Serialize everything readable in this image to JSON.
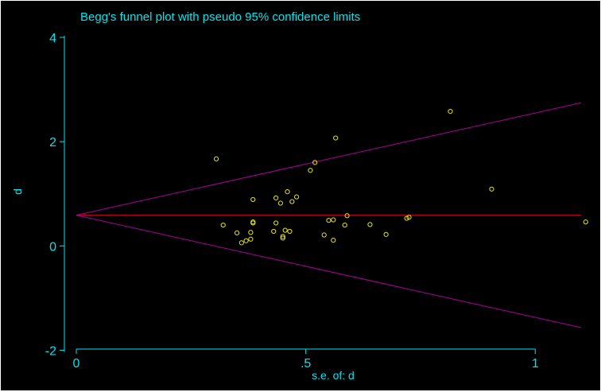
{
  "chart_data": {
    "type": "scatter",
    "title": "Begg's funnel plot with pseudo 95% confidence limits",
    "xlabel": "s.e. of: d",
    "ylabel": "d",
    "xlim": [
      0,
      1.1
    ],
    "ylim": [
      -2.1,
      4
    ],
    "x_ticks": [
      0,
      0.5,
      1
    ],
    "x_tick_labels": [
      "0",
      ".5",
      "1"
    ],
    "y_ticks": [
      -2,
      0,
      2,
      4
    ],
    "y_tick_labels": [
      "-2",
      "0",
      "2",
      "4"
    ],
    "grid": false,
    "pooled_estimate": 0.59,
    "confidence_z": 1.96,
    "points": [
      {
        "x": 0.305,
        "y": 1.67
      },
      {
        "x": 0.32,
        "y": 0.4
      },
      {
        "x": 0.35,
        "y": 0.25
      },
      {
        "x": 0.36,
        "y": 0.06
      },
      {
        "x": 0.37,
        "y": 0.1
      },
      {
        "x": 0.38,
        "y": 0.13
      },
      {
        "x": 0.38,
        "y": 0.26
      },
      {
        "x": 0.385,
        "y": 0.44
      },
      {
        "x": 0.385,
        "y": 0.46
      },
      {
        "x": 0.385,
        "y": 0.89
      },
      {
        "x": 0.43,
        "y": 0.28
      },
      {
        "x": 0.435,
        "y": 0.44
      },
      {
        "x": 0.435,
        "y": 0.92
      },
      {
        "x": 0.445,
        "y": 0.82
      },
      {
        "x": 0.45,
        "y": 0.15
      },
      {
        "x": 0.45,
        "y": 0.18
      },
      {
        "x": 0.455,
        "y": 0.3
      },
      {
        "x": 0.46,
        "y": 1.04
      },
      {
        "x": 0.465,
        "y": 0.28
      },
      {
        "x": 0.47,
        "y": 0.85
      },
      {
        "x": 0.48,
        "y": 0.94
      },
      {
        "x": 0.51,
        "y": 1.45
      },
      {
        "x": 0.52,
        "y": 1.6
      },
      {
        "x": 0.54,
        "y": 0.21
      },
      {
        "x": 0.55,
        "y": 0.49
      },
      {
        "x": 0.56,
        "y": 0.5
      },
      {
        "x": 0.56,
        "y": 0.11
      },
      {
        "x": 0.565,
        "y": 2.07
      },
      {
        "x": 0.585,
        "y": 0.4
      },
      {
        "x": 0.59,
        "y": 0.58
      },
      {
        "x": 0.64,
        "y": 0.41
      },
      {
        "x": 0.675,
        "y": 0.22
      },
      {
        "x": 0.72,
        "y": 0.53
      },
      {
        "x": 0.725,
        "y": 0.55
      },
      {
        "x": 0.815,
        "y": 2.58
      },
      {
        "x": 0.905,
        "y": 1.09
      },
      {
        "x": 1.11,
        "y": 0.46
      }
    ]
  },
  "colors": {
    "background": "#000000",
    "text": "#00e5ee",
    "axes": "#00e5ee",
    "points": "#e5e50b",
    "pooled_line": "#cc0022",
    "limit_lines": "#aa0099"
  }
}
